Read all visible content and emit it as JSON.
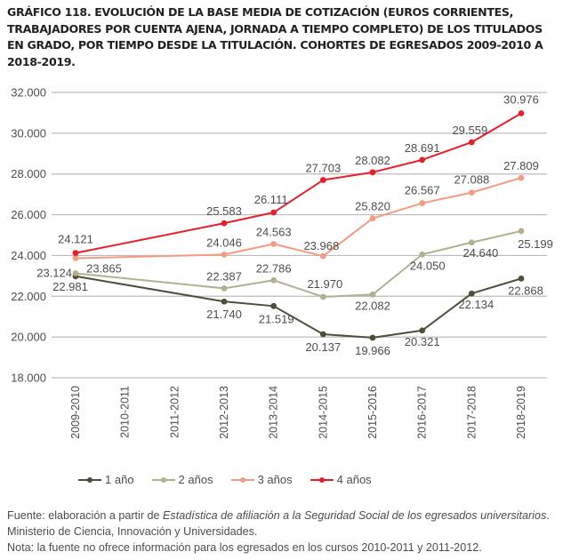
{
  "title": "GRÁFICO 118. EVOLUCIÓN DE LA BASE MEDIA DE COTIZACIÓN (EUROS CORRIENTES, TRABAJADORES POR CUENTA AJENA, JORNADA A TIEMPO COMPLETO) DE LOS TITULADOS EN GRADO, POR TIEMPO DESDE LA TITULACIÓN. COHORTES DE EGRESADOS 2009-2010 A 2018-2019.",
  "chart_data": {
    "type": "line",
    "title": "GRÁFICO 118. EVOLUCIÓN DE LA BASE MEDIA DE COTIZACIÓN (EUROS CORRIENTES, TRABAJADORES POR CUENTA AJENA, JORNADA A TIEMPO COMPLETO) DE LOS TITULADOS EN GRADO, POR TIEMPO DESDE LA TITULACIÓN. COHORTES DE EGRESADOS 2009-2010 A 2018-2019.",
    "xlabel": "",
    "ylabel": "",
    "categories": [
      "2009-2010",
      "2010-2011",
      "2011-2012",
      "2012-2013",
      "2013-2014",
      "2014-2015",
      "2015-2016",
      "2016-2017",
      "2017-2018",
      "2018-2019"
    ],
    "ylim": [
      18000,
      32000
    ],
    "yticks": [
      18000,
      20000,
      22000,
      24000,
      26000,
      28000,
      30000,
      32000
    ],
    "ytick_labels": [
      "18.000",
      "20.000",
      "22.000",
      "24.000",
      "26.000",
      "28.000",
      "30.000",
      "32.000"
    ],
    "grid": true,
    "legend_position": "bottom-left",
    "series": [
      {
        "name": "1 año",
        "color": "#4e4f3b",
        "values": [
          22981,
          null,
          null,
          21740,
          21519,
          20137,
          19966,
          20321,
          22134,
          22868
        ],
        "labels": [
          "22.981",
          null,
          null,
          "21.740",
          "21.519",
          "20.137",
          "19.966",
          "20.321",
          "22.134",
          "22.868"
        ]
      },
      {
        "name": "2 años",
        "color": "#b2b08f",
        "values": [
          23124,
          null,
          null,
          22387,
          22786,
          21970,
          22082,
          24050,
          24640,
          25199
        ],
        "labels": [
          "23.124",
          null,
          null,
          "22.387",
          "22.786",
          "21.970",
          "22.082",
          "24.050",
          "24.640",
          "25.199"
        ]
      },
      {
        "name": "3 años",
        "color": "#f39c83",
        "values": [
          23865,
          null,
          null,
          24046,
          24563,
          23968,
          25820,
          26567,
          27088,
          27809
        ],
        "labels": [
          "23.865",
          null,
          null,
          "24.046",
          "24.563",
          "23.968",
          "25.820",
          "26.567",
          "27.088",
          "27.809"
        ]
      },
      {
        "name": "4 años",
        "color": "#e61f2b",
        "values": [
          24121,
          null,
          null,
          25583,
          26111,
          27703,
          28082,
          28691,
          29559,
          30976
        ],
        "labels": [
          "24.121",
          null,
          null,
          "25.583",
          "26.111",
          "27.703",
          "28.082",
          "28.691",
          "29.559",
          "30.976"
        ]
      }
    ]
  },
  "legend": [
    {
      "label": "1 año",
      "color": "#4e4f3b"
    },
    {
      "label": "2 años",
      "color": "#b2b08f"
    },
    {
      "label": "3 años",
      "color": "#f39c83"
    },
    {
      "label": "4 años",
      "color": "#e61f2b"
    }
  ],
  "source": {
    "prefix": "Fuente: elaboración a partir de ",
    "italic": "Estadística de afiliación a la Seguridad Social de los egresados universitarios",
    "suffix": ". Ministerio de Ciencia, Innovación y Universidades.",
    "note": "Nota: la fuente no ofrece información para los egresados en los cursos 2010-2011 y 2011-2012."
  }
}
